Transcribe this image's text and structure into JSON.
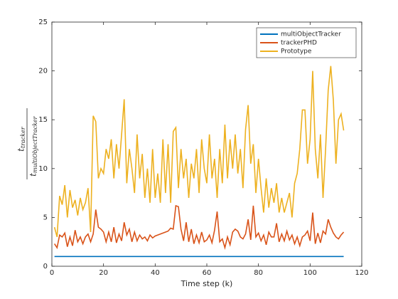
{
  "chart_data": {
    "type": "line",
    "xlabel": "Time step (k)",
    "ylabel": {
      "numerator": "t",
      "numerator_sub": "tracker",
      "denominator": "t",
      "denominator_sub": "multiObjectTracker"
    },
    "xlim": [
      0,
      120
    ],
    "xticks": [
      0,
      20,
      40,
      60,
      80,
      100,
      120
    ],
    "ylim": [
      0,
      25
    ],
    "yticks": [
      0,
      5,
      10,
      15,
      20,
      25
    ],
    "legend": "upper right",
    "x": [
      1,
      2,
      3,
      4,
      5,
      6,
      7,
      8,
      9,
      10,
      11,
      12,
      13,
      14,
      15,
      16,
      17,
      18,
      19,
      20,
      21,
      22,
      23,
      24,
      25,
      26,
      27,
      28,
      29,
      30,
      31,
      32,
      33,
      34,
      35,
      36,
      37,
      38,
      39,
      40,
      41,
      42,
      43,
      44,
      45,
      46,
      47,
      48,
      49,
      50,
      51,
      52,
      53,
      54,
      55,
      56,
      57,
      58,
      59,
      60,
      61,
      62,
      63,
      64,
      65,
      66,
      67,
      68,
      69,
      70,
      71,
      72,
      73,
      74,
      75,
      76,
      77,
      78,
      79,
      80,
      81,
      82,
      83,
      84,
      85,
      86,
      87,
      88,
      89,
      90,
      91,
      92,
      93,
      94,
      95,
      96,
      97,
      98,
      99,
      100,
      101,
      102,
      103,
      104,
      105,
      106,
      107,
      108,
      109,
      110,
      111,
      112,
      113
    ],
    "series": [
      {
        "name": "multiObjectTracker",
        "color": "#0072bd",
        "values": [
          1,
          1,
          1,
          1,
          1,
          1,
          1,
          1,
          1,
          1,
          1,
          1,
          1,
          1,
          1,
          1,
          1,
          1,
          1,
          1,
          1,
          1,
          1,
          1,
          1,
          1,
          1,
          1,
          1,
          1,
          1,
          1,
          1,
          1,
          1,
          1,
          1,
          1,
          1,
          1,
          1,
          1,
          1,
          1,
          1,
          1,
          1,
          1,
          1,
          1,
          1,
          1,
          1,
          1,
          1,
          1,
          1,
          1,
          1,
          1,
          1,
          1,
          1,
          1,
          1,
          1,
          1,
          1,
          1,
          1,
          1,
          1,
          1,
          1,
          1,
          1,
          1,
          1,
          1,
          1,
          1,
          1,
          1,
          1,
          1,
          1,
          1,
          1,
          1,
          1,
          1,
          1,
          1,
          1,
          1,
          1,
          1,
          1,
          1,
          1,
          1,
          1,
          1,
          1,
          1,
          1,
          1,
          1,
          1,
          1,
          1,
          1,
          1
        ]
      },
      {
        "name": "trackerPHD",
        "color": "#d95319",
        "values": [
          2.3,
          1.9,
          3.2,
          3.0,
          3.4,
          2.0,
          3.0,
          2.1,
          3.7,
          2.5,
          3.0,
          2.3,
          3.0,
          3.3,
          2.5,
          3.3,
          5.8,
          4.0,
          3.8,
          3.5,
          2.5,
          3.5,
          2.5,
          4.0,
          2.4,
          3.3,
          2.6,
          4.5,
          3.2,
          3.8,
          2.5,
          3.5,
          2.6,
          3.2,
          2.8,
          3.0,
          2.6,
          3.2,
          2.9,
          3.1,
          3.2,
          3.3,
          3.4,
          3.5,
          3.6,
          3.9,
          3.8,
          6.2,
          6.1,
          3.8,
          2.6,
          4.5,
          2.5,
          3.8,
          2.3,
          3.2,
          2.4,
          3.5,
          2.5,
          2.7,
          3.2,
          2.4,
          3.7,
          5.6,
          2.5,
          2.8,
          1.9,
          3.0,
          2.2,
          3.5,
          3.8,
          3.6,
          3.0,
          2.8,
          3.3,
          4.8,
          2.7,
          6.2,
          3.0,
          3.4,
          2.6,
          3.2,
          2.2,
          3.5,
          3.0,
          3.0,
          4.4,
          2.5,
          3.3,
          2.6,
          3.6,
          2.7,
          3.2,
          2.3,
          3.0,
          2.1,
          3.0,
          3.2,
          3.6,
          2.6,
          5.5,
          2.3,
          3.4,
          2.4,
          3.6,
          3.3,
          4.8,
          4.0,
          3.4,
          3.0,
          2.8,
          3.2,
          3.5
        ]
      },
      {
        "name": "Prototype",
        "color": "#edb120",
        "values": [
          4.0,
          3.0,
          7.2,
          6.3,
          8.3,
          5.0,
          7.8,
          6.0,
          6.8,
          5.2,
          7.0,
          5.8,
          6.5,
          8.0,
          3.5,
          15.4,
          14.8,
          9.0,
          10.0,
          9.5,
          12.0,
          11.0,
          13.0,
          9.0,
          12.5,
          10.0,
          13.5,
          17.1,
          8.5,
          12.0,
          10.0,
          7.5,
          13.5,
          9.0,
          11.5,
          7.0,
          10.0,
          6.5,
          12.0,
          7.0,
          9.5,
          6.5,
          13.0,
          7.5,
          12.5,
          6.5,
          13.8,
          14.2,
          8.0,
          12.0,
          9.0,
          11.0,
          7.0,
          10.5,
          9.0,
          12.0,
          7.5,
          13.0,
          10.0,
          8.5,
          13.5,
          9.0,
          11.0,
          7.0,
          12.0,
          8.5,
          14.5,
          9.0,
          13.0,
          10.0,
          13.5,
          9.5,
          12.0,
          8.0,
          14.0,
          16.5,
          10.5,
          12.5,
          7.5,
          11.0,
          8.0,
          5.5,
          9.0,
          6.0,
          8.0,
          6.5,
          8.5,
          5.5,
          7.0,
          5.5,
          6.5,
          7.5,
          5.0,
          8.5,
          9.5,
          12.0,
          16.0,
          16.0,
          10.5,
          13.0,
          20.0,
          12.0,
          9.0,
          13.5,
          7.0,
          12.0,
          18.0,
          20.5,
          17.0,
          10.5,
          15.0,
          15.6,
          13.9
        ]
      }
    ]
  }
}
